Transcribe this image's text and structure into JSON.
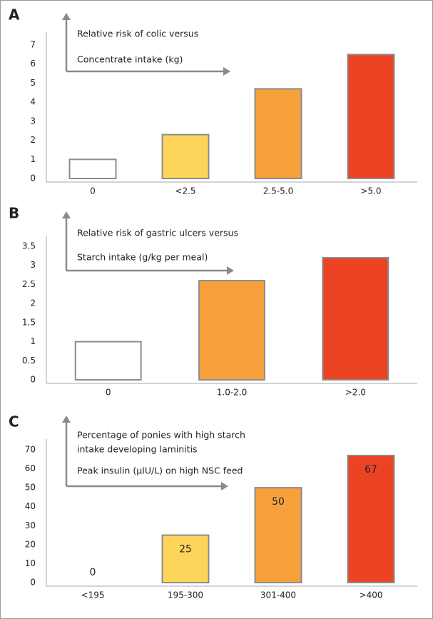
{
  "chart_data": [
    {
      "type": "bar",
      "panel": "A",
      "ylabel": [
        "Relative risk of colic versus"
      ],
      "xlabel": "Concentrate intake (kg)",
      "categories": [
        "0",
        "<2.5",
        "2.5-5.0",
        ">5.0"
      ],
      "values": [
        1,
        2.3,
        4.7,
        6.5
      ],
      "colors": [
        "#ffffff",
        "#fdd55b",
        "#f7a13d",
        "#ec4325"
      ],
      "ylim": [
        0,
        7
      ],
      "yticks": [
        0,
        1,
        2,
        3,
        4,
        5,
        6,
        7
      ],
      "show_values": false
    },
    {
      "type": "bar",
      "panel": "B",
      "ylabel": [
        "Relative risk of gastric ulcers versus"
      ],
      "xlabel": "Starch intake (g/kg per meal)",
      "categories": [
        "0",
        "1.0-2.0",
        ">2.0"
      ],
      "values": [
        1,
        2.6,
        3.2
      ],
      "colors": [
        "#ffffff",
        "#f7a13d",
        "#ec4325"
      ],
      "ylim": [
        0,
        3.5
      ],
      "yticks": [
        0,
        0.5,
        1,
        1.5,
        2,
        2.5,
        3,
        3.5
      ],
      "show_values": false
    },
    {
      "type": "bar",
      "panel": "C",
      "ylabel": [
        "Percentage of ponies with high starch",
        "intake developing laminitis"
      ],
      "xlabel": "Peak insulin (µIU/L) on high NSC feed",
      "categories": [
        "<195",
        "195-300",
        "301-400",
        ">400"
      ],
      "values": [
        0,
        25,
        50,
        67
      ],
      "colors": [
        "#ffffff",
        "#fdd55b",
        "#f7a13d",
        "#ec4325"
      ],
      "ylim": [
        0,
        70
      ],
      "yticks": [
        0,
        10,
        20,
        30,
        40,
        50,
        60,
        70
      ],
      "show_values": true
    }
  ]
}
